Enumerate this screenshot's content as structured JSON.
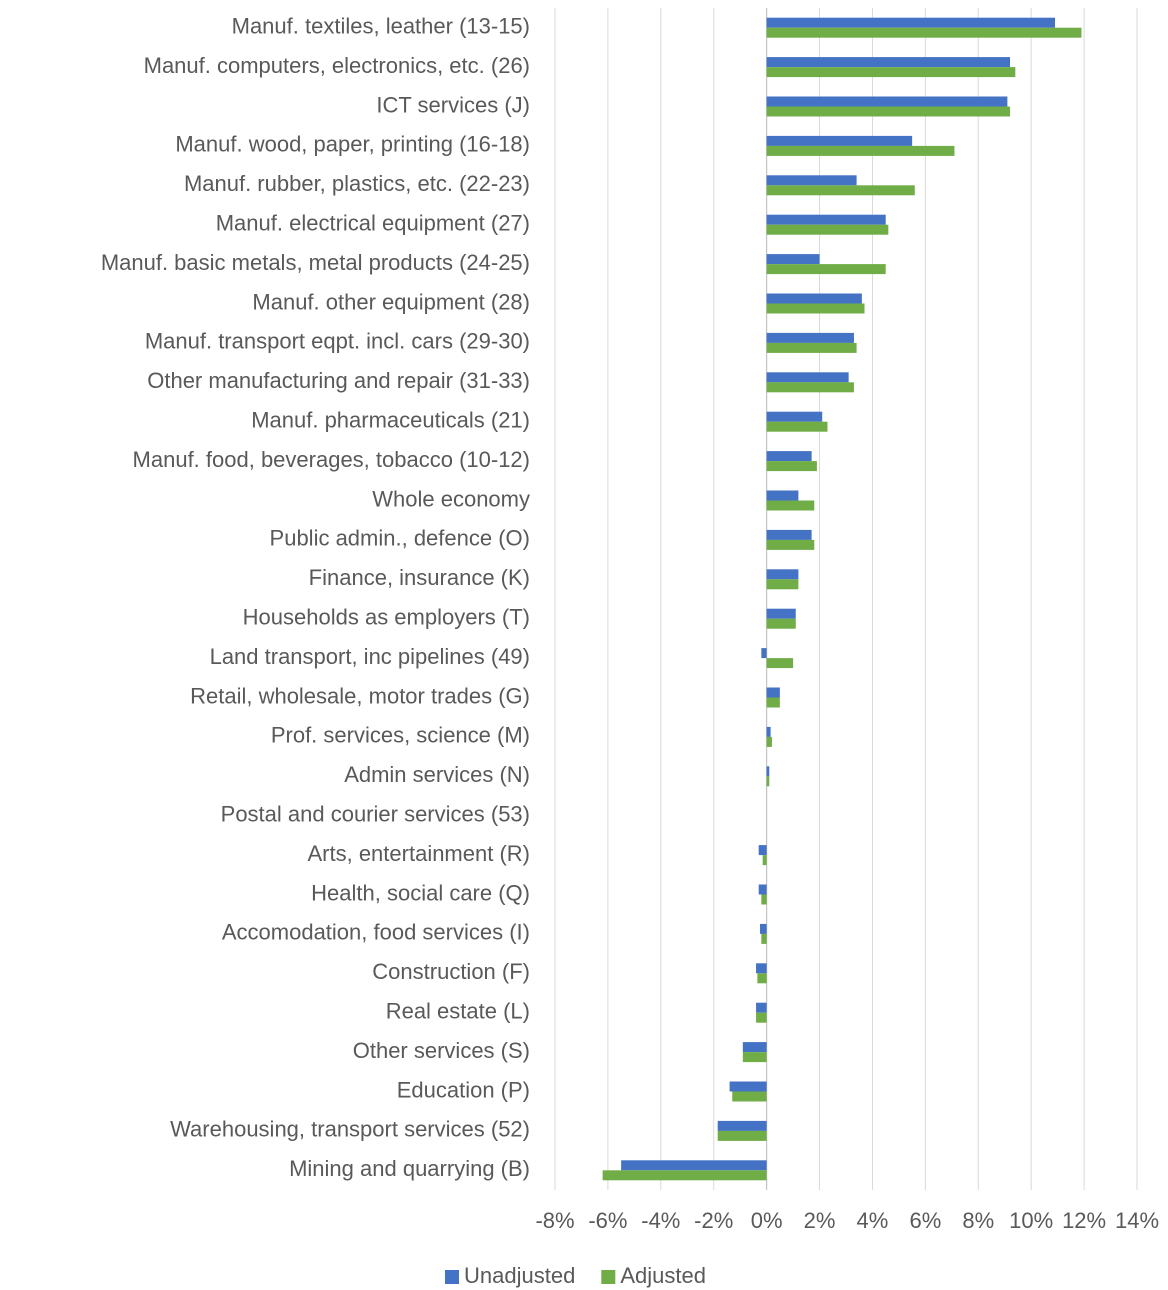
{
  "chart_data": {
    "type": "bar",
    "orientation": "horizontal",
    "categories": [
      "Manuf. textiles, leather (13-15)",
      "Manuf. computers, electronics, etc. (26)",
      "ICT services (J)",
      "Manuf. wood, paper, printing (16-18)",
      "Manuf. rubber, plastics, etc. (22-23)",
      "Manuf. electrical equipment (27)",
      "Manuf. basic metals, metal products (24-25)",
      "Manuf. other equipment (28)",
      "Manuf. transport eqpt. incl. cars (29-30)",
      "Other manufacturing and repair (31-33)",
      "Manuf. pharmaceuticals (21)",
      "Manuf. food, beverages, tobacco (10-12)",
      "Whole economy",
      "Public admin., defence (O)",
      "Finance, insurance (K)",
      "Households as employers (T)",
      "Land transport, inc pipelines (49)",
      "Retail, wholesale, motor trades (G)",
      "Prof. services, science (M)",
      "Admin services (N)",
      "Postal and courier services (53)",
      "Arts, entertainment (R)",
      "Health, social care (Q)",
      "Accomodation, food services (I)",
      "Construction (F)",
      "Real estate (L)",
      "Other services (S)",
      "Education (P)",
      "Warehousing, transport services (52)",
      "Mining and quarrying (B)"
    ],
    "series": [
      {
        "name": "Unadjusted",
        "color": "#4472c4",
        "values": [
          10.9,
          9.2,
          9.1,
          5.5,
          3.4,
          4.5,
          2.0,
          3.6,
          3.3,
          3.1,
          2.1,
          1.7,
          1.2,
          1.7,
          1.2,
          1.1,
          -0.2,
          0.5,
          0.15,
          0.1,
          0,
          -0.3,
          -0.3,
          -0.25,
          -0.4,
          -0.4,
          -0.9,
          -1.4,
          -1.85,
          -5.5
        ]
      },
      {
        "name": "Adjusted",
        "color": "#70ad47",
        "values": [
          11.9,
          9.4,
          9.2,
          7.1,
          5.6,
          4.6,
          4.5,
          3.7,
          3.4,
          3.3,
          2.3,
          1.9,
          1.8,
          1.8,
          1.2,
          1.1,
          1.0,
          0.5,
          0.2,
          0.1,
          0,
          -0.15,
          -0.2,
          -0.2,
          -0.35,
          -0.4,
          -0.9,
          -1.3,
          -1.85,
          -6.2
        ]
      }
    ],
    "xlim": [
      -8,
      14
    ],
    "xticks": [
      {
        "value": -8,
        "label": "-8%"
      },
      {
        "value": -6,
        "label": "-6%"
      },
      {
        "value": -4,
        "label": "-4%"
      },
      {
        "value": -2,
        "label": "-2%"
      },
      {
        "value": 0,
        "label": "0%"
      },
      {
        "value": 2,
        "label": "2%"
      },
      {
        "value": 4,
        "label": "4%"
      },
      {
        "value": 6,
        "label": "6%"
      },
      {
        "value": 8,
        "label": "8%"
      },
      {
        "value": 10,
        "label": "10%"
      },
      {
        "value": 12,
        "label": "12%"
      },
      {
        "value": 14,
        "label": "14%"
      }
    ],
    "grid": true,
    "legend": "bottom"
  }
}
